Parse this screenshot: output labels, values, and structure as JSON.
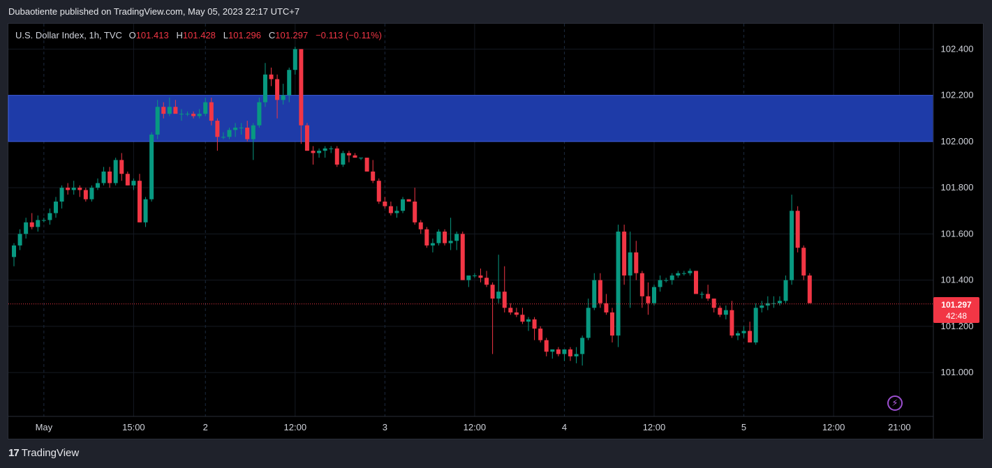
{
  "header": {
    "published": "Dubaotiente published on TradingView.com, May 05, 2023 22:17 UTC+7"
  },
  "legend": {
    "symbol": "U.S. Dollar Index, 1h, TVC",
    "o_label": "O",
    "o": "101.413",
    "h_label": "H",
    "h": "101.428",
    "l_label": "L",
    "l": "101.296",
    "c_label": "C",
    "c": "101.297",
    "change": "−0.113 (−0.11%)"
  },
  "price_tag": {
    "price": "101.297",
    "countdown": "42:48"
  },
  "footer": {
    "brand": "TradingView",
    "logo_mark": "17"
  },
  "icons": {
    "bolt": "lightning-bolt-icon"
  },
  "colors": {
    "up": "#089981",
    "down": "#f23645",
    "zone": "#1e3ba8",
    "background": "#000000"
  },
  "chart_data": {
    "type": "candlestick",
    "y_ticks": [
      "102.400",
      "102.200",
      "102.000",
      "101.800",
      "101.600",
      "101.400",
      "101.200",
      "101.000"
    ],
    "ylim": [
      100.81,
      102.51
    ],
    "x_ticks": [
      {
        "label": "May",
        "index": 5
      },
      {
        "label": "15:00",
        "index": 20
      },
      {
        "label": "2",
        "index": 32
      },
      {
        "label": "12:00",
        "index": 47
      },
      {
        "label": "3",
        "index": 62
      },
      {
        "label": "12:00",
        "index": 77
      },
      {
        "label": "4",
        "index": 92
      },
      {
        "label": "12:00",
        "index": 107
      },
      {
        "label": "5",
        "index": 122
      },
      {
        "label": "12:00",
        "index": 137
      },
      {
        "label": "21:00",
        "index": 148
      }
    ],
    "zone": {
      "from": 102.0,
      "to": 102.2
    },
    "last_price": 101.297,
    "candles": [
      [
        101.5,
        101.56,
        101.46,
        101.55
      ],
      [
        101.55,
        101.62,
        101.53,
        101.6
      ],
      [
        101.6,
        101.67,
        101.58,
        101.65
      ],
      [
        101.65,
        101.69,
        101.62,
        101.63
      ],
      [
        101.63,
        101.68,
        101.61,
        101.66
      ],
      [
        101.66,
        101.67,
        101.65,
        101.66
      ],
      [
        101.66,
        101.71,
        101.64,
        101.69
      ],
      [
        101.69,
        101.76,
        101.67,
        101.74
      ],
      [
        101.74,
        101.81,
        101.71,
        101.8
      ],
      [
        101.8,
        101.82,
        101.77,
        101.79
      ],
      [
        101.79,
        101.83,
        101.77,
        101.8
      ],
      [
        101.8,
        101.81,
        101.76,
        101.79
      ],
      [
        101.79,
        101.8,
        101.74,
        101.75
      ],
      [
        101.75,
        101.81,
        101.74,
        101.8
      ],
      [
        101.8,
        101.84,
        101.79,
        101.82
      ],
      [
        101.82,
        101.89,
        101.81,
        101.87
      ],
      [
        101.87,
        101.89,
        101.8,
        101.82
      ],
      [
        101.82,
        101.93,
        101.81,
        101.92
      ],
      [
        101.92,
        101.95,
        101.83,
        101.86
      ],
      [
        101.86,
        101.87,
        101.81,
        101.81
      ],
      [
        101.81,
        101.84,
        101.79,
        101.83
      ],
      [
        101.83,
        101.86,
        101.65,
        101.65
      ],
      [
        101.65,
        101.76,
        101.63,
        101.75
      ],
      [
        101.75,
        102.04,
        101.74,
        102.03
      ],
      [
        102.03,
        102.18,
        102.01,
        102.15
      ],
      [
        102.15,
        102.17,
        102.1,
        102.12
      ],
      [
        102.12,
        102.19,
        102.11,
        102.15
      ],
      [
        102.15,
        102.18,
        102.13,
        102.12
      ],
      [
        102.12,
        102.14,
        102.09,
        102.12
      ],
      [
        102.12,
        102.13,
        102.11,
        102.12
      ],
      [
        102.12,
        102.13,
        102.1,
        102.11
      ],
      [
        102.11,
        102.14,
        102.1,
        102.12
      ],
      [
        102.12,
        102.19,
        102.11,
        102.17
      ],
      [
        102.17,
        102.19,
        102.07,
        102.09
      ],
      [
        102.09,
        102.1,
        101.96,
        102.02
      ],
      [
        102.02,
        102.04,
        102.01,
        102.02
      ],
      [
        102.02,
        102.06,
        102.01,
        102.05
      ],
      [
        102.05,
        102.08,
        102.02,
        102.06
      ],
      [
        102.06,
        102.08,
        102.03,
        102.06
      ],
      [
        102.06,
        102.09,
        102.0,
        102.01
      ],
      [
        102.01,
        102.08,
        101.92,
        102.07
      ],
      [
        102.07,
        102.19,
        102.06,
        102.17
      ],
      [
        102.17,
        102.34,
        102.15,
        102.29
      ],
      [
        102.29,
        102.32,
        102.24,
        102.27
      ],
      [
        102.27,
        102.29,
        102.1,
        102.18
      ],
      [
        102.18,
        102.25,
        102.16,
        102.2
      ],
      [
        102.2,
        102.32,
        102.17,
        102.31
      ],
      [
        102.31,
        102.41,
        102.29,
        102.4
      ],
      [
        102.4,
        102.4,
        101.99,
        102.07
      ],
      [
        102.07,
        102.08,
        101.96,
        101.96
      ],
      [
        101.96,
        101.98,
        101.9,
        101.95
      ],
      [
        101.95,
        101.97,
        101.93,
        101.96
      ],
      [
        101.96,
        101.98,
        101.93,
        101.97
      ],
      [
        101.97,
        101.98,
        101.95,
        101.97
      ],
      [
        101.97,
        101.98,
        101.89,
        101.9
      ],
      [
        101.9,
        101.96,
        101.89,
        101.95
      ],
      [
        101.95,
        101.96,
        101.91,
        101.94
      ],
      [
        101.94,
        101.95,
        101.93,
        101.93
      ],
      [
        101.93,
        101.93,
        101.92,
        101.93
      ],
      [
        101.93,
        101.93,
        101.87,
        101.87
      ],
      [
        101.87,
        101.92,
        101.82,
        101.83
      ],
      [
        101.83,
        101.84,
        101.73,
        101.74
      ],
      [
        101.74,
        101.76,
        101.71,
        101.72
      ],
      [
        101.72,
        101.74,
        101.68,
        101.69
      ],
      [
        101.69,
        101.72,
        101.67,
        101.7
      ],
      [
        101.7,
        101.76,
        101.69,
        101.75
      ],
      [
        101.75,
        101.75,
        101.74,
        101.74
      ],
      [
        101.74,
        101.8,
        101.64,
        101.65
      ],
      [
        101.65,
        101.66,
        101.6,
        101.62
      ],
      [
        101.62,
        101.63,
        101.54,
        101.55
      ],
      [
        101.55,
        101.58,
        101.52,
        101.56
      ],
      [
        101.56,
        101.62,
        101.55,
        101.61
      ],
      [
        101.61,
        101.62,
        101.55,
        101.56
      ],
      [
        101.56,
        101.67,
        101.53,
        101.57
      ],
      [
        101.57,
        101.61,
        101.53,
        101.6
      ],
      [
        101.6,
        101.61,
        101.4,
        101.4
      ],
      [
        101.4,
        101.42,
        101.37,
        101.42
      ],
      [
        101.42,
        101.43,
        101.41,
        101.42
      ],
      [
        101.42,
        101.45,
        101.39,
        101.41
      ],
      [
        101.41,
        101.44,
        101.37,
        101.38
      ],
      [
        101.38,
        101.39,
        101.08,
        101.32
      ],
      [
        101.32,
        101.51,
        101.3,
        101.35
      ],
      [
        101.35,
        101.46,
        101.26,
        101.28
      ],
      [
        101.28,
        101.3,
        101.25,
        101.26
      ],
      [
        101.26,
        101.28,
        101.24,
        101.25
      ],
      [
        101.25,
        101.28,
        101.21,
        101.22
      ],
      [
        101.22,
        101.24,
        101.18,
        101.23
      ],
      [
        101.23,
        101.24,
        101.14,
        101.19
      ],
      [
        101.19,
        101.2,
        101.13,
        101.14
      ],
      [
        101.14,
        101.15,
        101.07,
        101.09
      ],
      [
        101.09,
        101.1,
        101.06,
        101.1
      ],
      [
        101.1,
        101.11,
        101.07,
        101.08
      ],
      [
        101.08,
        101.1,
        101.05,
        101.1
      ],
      [
        101.1,
        101.11,
        101.05,
        101.07
      ],
      [
        101.07,
        101.11,
        101.04,
        101.08
      ],
      [
        101.08,
        101.16,
        101.03,
        101.15
      ],
      [
        101.15,
        101.32,
        101.14,
        101.28
      ],
      [
        101.28,
        101.43,
        101.27,
        101.4
      ],
      [
        101.4,
        101.43,
        101.28,
        101.3
      ],
      [
        101.3,
        101.34,
        101.25,
        101.26
      ],
      [
        101.26,
        101.28,
        101.13,
        101.16
      ],
      [
        101.16,
        101.64,
        101.11,
        101.61
      ],
      [
        101.61,
        101.64,
        101.38,
        101.42
      ],
      [
        101.42,
        101.61,
        101.28,
        101.52
      ],
      [
        101.52,
        101.57,
        101.4,
        101.43
      ],
      [
        101.43,
        101.44,
        101.28,
        101.33
      ],
      [
        101.33,
        101.39,
        101.25,
        101.3
      ],
      [
        101.3,
        101.38,
        101.29,
        101.37
      ],
      [
        101.37,
        101.42,
        101.35,
        101.4
      ],
      [
        101.4,
        101.41,
        101.39,
        101.4
      ],
      [
        101.4,
        101.43,
        101.38,
        101.42
      ],
      [
        101.42,
        101.44,
        101.41,
        101.43
      ],
      [
        101.43,
        101.44,
        101.42,
        101.43
      ],
      [
        101.43,
        101.45,
        101.42,
        101.44
      ],
      [
        101.44,
        101.44,
        101.34,
        101.34
      ],
      [
        101.34,
        101.35,
        101.32,
        101.34
      ],
      [
        101.34,
        101.38,
        101.31,
        101.32
      ],
      [
        101.32,
        101.32,
        101.26,
        101.28
      ],
      [
        101.28,
        101.29,
        101.24,
        101.25
      ],
      [
        101.25,
        101.29,
        101.23,
        101.27
      ],
      [
        101.27,
        101.31,
        101.15,
        101.16
      ],
      [
        101.16,
        101.18,
        101.14,
        101.17
      ],
      [
        101.17,
        101.2,
        101.15,
        101.18
      ],
      [
        101.18,
        101.22,
        101.13,
        101.13
      ],
      [
        101.13,
        101.3,
        101.12,
        101.28
      ],
      [
        101.28,
        101.31,
        101.26,
        101.29
      ],
      [
        101.29,
        101.33,
        101.27,
        101.3
      ],
      [
        101.3,
        101.33,
        101.28,
        101.3
      ],
      [
        101.3,
        101.33,
        101.29,
        101.31
      ],
      [
        101.31,
        101.42,
        101.3,
        101.4
      ],
      [
        101.4,
        101.77,
        101.38,
        101.7
      ],
      [
        101.7,
        101.72,
        101.52,
        101.54
      ],
      [
        101.54,
        101.55,
        101.4,
        101.42
      ],
      [
        101.42,
        101.43,
        101.3,
        101.3
      ]
    ]
  }
}
